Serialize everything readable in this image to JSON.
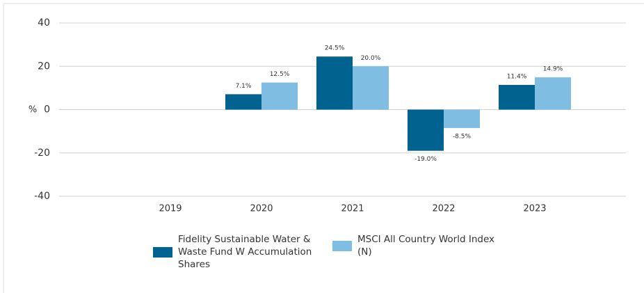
{
  "chart_data": {
    "type": "bar",
    "ylabel": "%",
    "categories": [
      "2019",
      "2020",
      "2021",
      "2022",
      "2023"
    ],
    "series": [
      {
        "name": "Fidelity Sustainable Water & Waste Fund W Accumulation Shares",
        "color": "#00628f",
        "values": [
          null,
          7.1,
          24.5,
          -19.0,
          11.4
        ],
        "value_labels": [
          null,
          "7.1%",
          "24.5%",
          "-19.0%",
          "11.4%"
        ]
      },
      {
        "name": "MSCI All Country World Index (N)",
        "color": "#7fbde3",
        "values": [
          null,
          12.5,
          20.0,
          -8.5,
          14.9
        ],
        "value_labels": [
          null,
          "12.5%",
          "20.0%",
          "-8.5%",
          "14.9%"
        ]
      }
    ],
    "ylim": [
      -40,
      40
    ],
    "yticks": [
      -40,
      -20,
      0,
      20,
      40
    ],
    "grid": true
  }
}
